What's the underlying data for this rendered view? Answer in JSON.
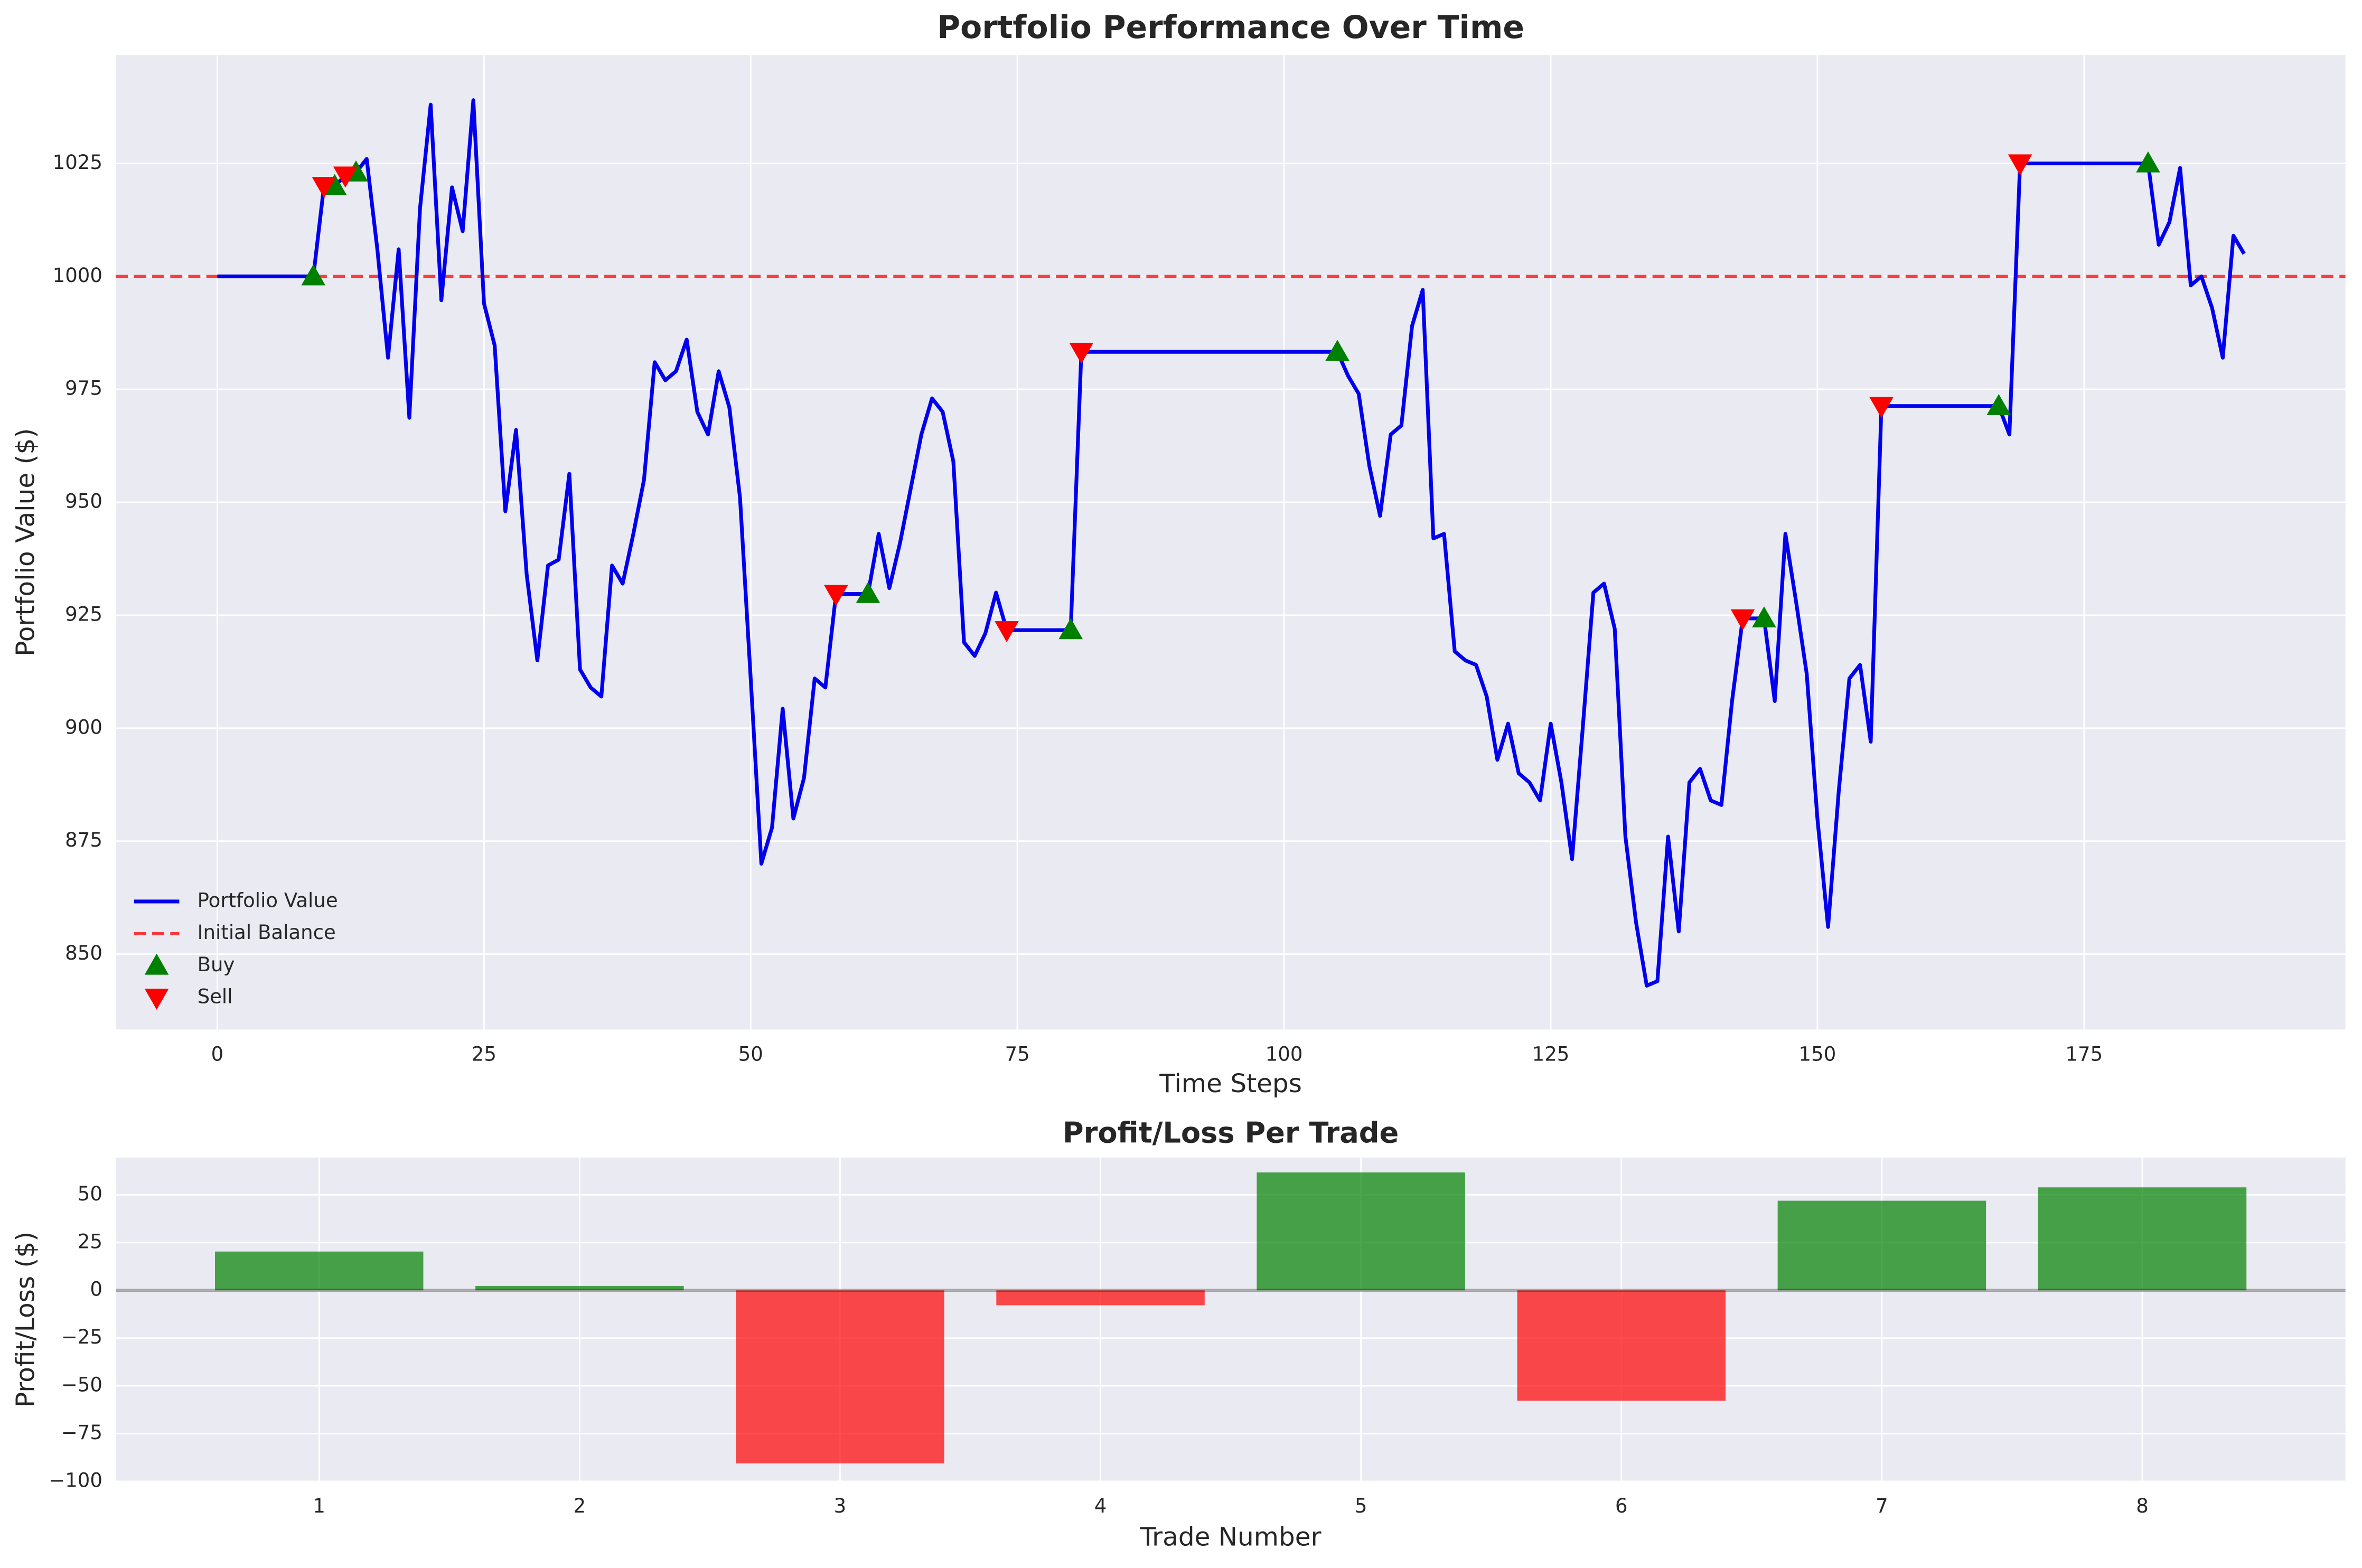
{
  "chart_data": [
    {
      "type": "line",
      "title": "Portfolio Performance Over Time",
      "xlabel": "Time Steps",
      "ylabel": "Portfolio Value ($)",
      "x": [
        0,
        1,
        2,
        3,
        4,
        5,
        6,
        7,
        8,
        9,
        10,
        11,
        12,
        13,
        14,
        15,
        16,
        17,
        18,
        19,
        20,
        21,
        22,
        23,
        24,
        25,
        26,
        27,
        28,
        29,
        30,
        31,
        32,
        33,
        34,
        35,
        36,
        37,
        38,
        39,
        40,
        41,
        42,
        43,
        44,
        45,
        46,
        47,
        48,
        49,
        50,
        51,
        52,
        53,
        54,
        55,
        56,
        57,
        58,
        59,
        60,
        61,
        62,
        63,
        64,
        65,
        66,
        67,
        68,
        69,
        70,
        71,
        72,
        73,
        74,
        75,
        76,
        77,
        78,
        79,
        80,
        81,
        82,
        83,
        84,
        85,
        86,
        87,
        88,
        89,
        90,
        91,
        92,
        93,
        94,
        95,
        96,
        97,
        98,
        99,
        100,
        101,
        102,
        103,
        104,
        105,
        106,
        107,
        108,
        109,
        110,
        111,
        112,
        113,
        114,
        115,
        116,
        117,
        118,
        119,
        120,
        121,
        122,
        123,
        124,
        125,
        126,
        127,
        128,
        129,
        130,
        131,
        132,
        133,
        134,
        135,
        136,
        137,
        138,
        139,
        140,
        141,
        142,
        143,
        144,
        145,
        146,
        147,
        148,
        149,
        150,
        151,
        152,
        153,
        154,
        155,
        156,
        157,
        158,
        159,
        160,
        161,
        162,
        163,
        164,
        165,
        166,
        167,
        168,
        169,
        170,
        171,
        172,
        173,
        174,
        175,
        176,
        177,
        178,
        179,
        180,
        181,
        182,
        183,
        184,
        185,
        186,
        187,
        188,
        189,
        190
      ],
      "series": [
        {
          "name": "Portfolio Value",
          "color": "#0000ee",
          "values": [
            1000,
            1000,
            1000,
            1000,
            1000,
            1000,
            1000,
            1000,
            1000,
            1000,
            1020,
            1020,
            1022.3,
            1023,
            1026,
            1006,
            982,
            1006,
            968.7,
            1015,
            1038,
            994.7,
            1019.7,
            1010,
            1039,
            994,
            984.7,
            948,
            966,
            934,
            915,
            936,
            937.3,
            956.3,
            913,
            909,
            907,
            936,
            932,
            943,
            955,
            981,
            977,
            979,
            986,
            970,
            965,
            979,
            971,
            951,
            911,
            870,
            878,
            904.3,
            880,
            889,
            911,
            909,
            929.7,
            929.7,
            929.7,
            929.7,
            943,
            931,
            941,
            953,
            965,
            973,
            970,
            959,
            919,
            916,
            921,
            930,
            921.7,
            921.7,
            921.7,
            921.7,
            921.7,
            921.7,
            921.7,
            983.3,
            983.3,
            983.3,
            983.3,
            983.3,
            983.3,
            983.3,
            983.3,
            983.3,
            983.3,
            983.3,
            983.3,
            983.3,
            983.3,
            983.3,
            983.3,
            983.3,
            983.3,
            983.3,
            983.3,
            983.3,
            983.3,
            983.3,
            983.3,
            983.3,
            978,
            974,
            958,
            947,
            965,
            967,
            989,
            997,
            942,
            943,
            917,
            915,
            914,
            907,
            893,
            901,
            890,
            888,
            884,
            901,
            888,
            871,
            900,
            930,
            932,
            922,
            876,
            857,
            843,
            844,
            876,
            855,
            888,
            891,
            884,
            883,
            906,
            924.3,
            924.3,
            924.3,
            906,
            943,
            928,
            912,
            880,
            856,
            886,
            911,
            914,
            897,
            971.3,
            971.3,
            971.3,
            971.3,
            971.3,
            971.3,
            971.3,
            971.3,
            971.3,
            971.3,
            971.3,
            971.3,
            965,
            1025,
            1025,
            1025,
            1025,
            1025,
            1025,
            1025,
            1025,
            1025,
            1025,
            1025,
            1025,
            1025,
            1007,
            1012,
            1024,
            998,
            1000,
            993,
            982,
            1009,
            1005
          ]
        }
      ],
      "hlines": [
        {
          "name": "Initial Balance",
          "value": 1000,
          "color": "#ff0000",
          "dashed": true
        }
      ],
      "markers": [
        {
          "name": "Buy",
          "color": "#008000",
          "shape": "triangle-up",
          "x": [
            9,
            11,
            13,
            61,
            80,
            105,
            145,
            167,
            181
          ],
          "values": [
            1000,
            1020,
            1023,
            929.7,
            921.7,
            983.3,
            924.3,
            971.3,
            1025
          ]
        },
        {
          "name": "Sell",
          "color": "#ff0000",
          "shape": "triangle-down",
          "x": [
            10,
            12,
            58,
            74,
            81,
            143,
            156,
            169
          ],
          "values": [
            1020,
            1022.3,
            929.7,
            921.7,
            983.3,
            924.3,
            971.3,
            1025
          ]
        }
      ],
      "xlim": [
        -9.5,
        199.5
      ],
      "xticks": [
        0,
        25,
        50,
        75,
        100,
        125,
        150,
        175
      ],
      "ylim": [
        833.3,
        1049
      ],
      "yticks": [
        850,
        875,
        900,
        925,
        950,
        975,
        1000,
        1025
      ],
      "grid": true,
      "legend": "lower left"
    },
    {
      "type": "bar",
      "title": "Profit/Loss Per Trade",
      "xlabel": "Trade Number",
      "ylabel": "Profit/Loss ($)",
      "x": [
        1,
        2,
        3,
        4,
        5,
        6,
        7,
        8
      ],
      "values": [
        20.3,
        2.3,
        -90.6,
        -7.8,
        61.7,
        -57.8,
        46.9,
        53.9
      ],
      "colors": [
        "#008000",
        "#008000",
        "#ff0000",
        "#ff0000",
        "#008000",
        "#ff0000",
        "#008000",
        "#008000"
      ],
      "zero_line": 0,
      "xlim": [
        0.22,
        8.78
      ],
      "xticks": [
        1,
        2,
        3,
        4,
        5,
        6,
        7,
        8
      ],
      "ylim": [
        -100,
        69.5
      ],
      "yticks": [
        {
          "value": -100,
          "label": "−100"
        },
        {
          "value": -75,
          "label": "−75"
        },
        {
          "value": -50,
          "label": "−50"
        },
        {
          "value": -25,
          "label": "−25"
        },
        0,
        25,
        50
      ],
      "grid": true
    }
  ]
}
